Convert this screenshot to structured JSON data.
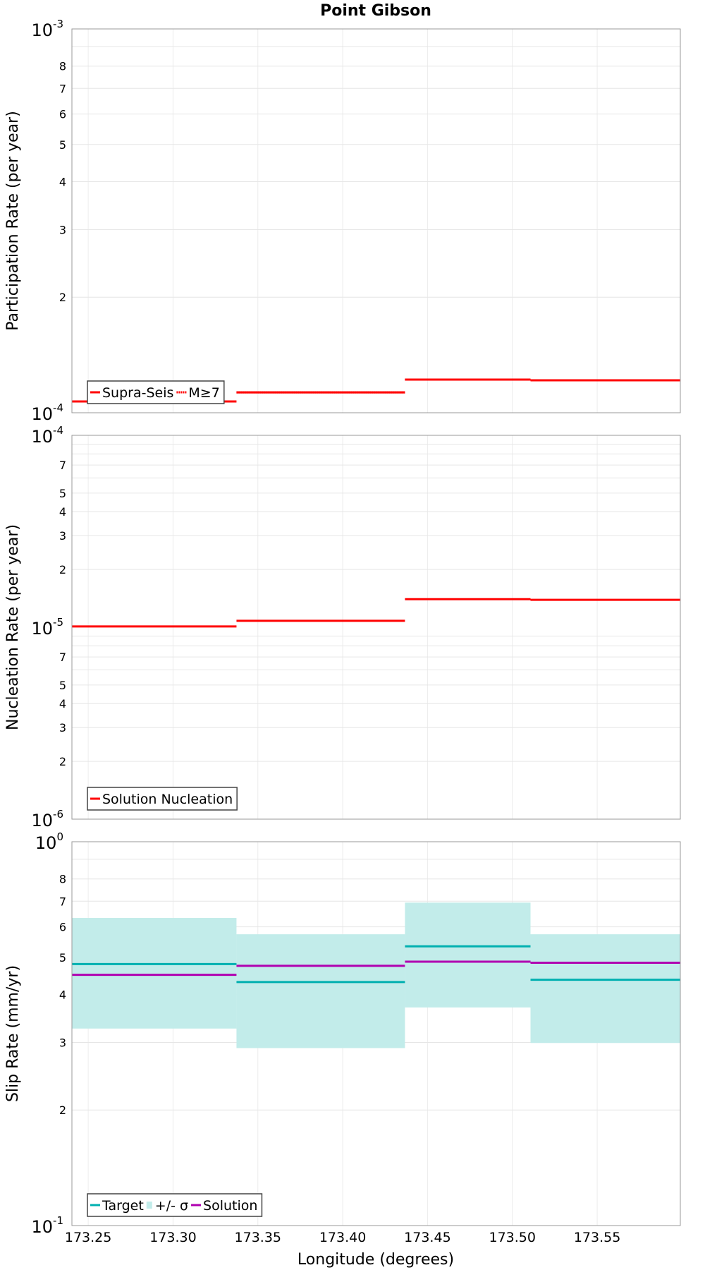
{
  "chart_data": {
    "title": "Point Gibson",
    "xlabel": "Longitude (degrees)",
    "xlim": [
      173.2404,
      173.599
    ],
    "xticks": [
      "173.25",
      "173.30",
      "173.35",
      "173.40",
      "173.45",
      "173.50",
      "173.55"
    ],
    "segments": [
      173.2404,
      173.3374,
      173.4367,
      173.5107,
      173.599
    ],
    "panels": [
      {
        "type": "line",
        "ylabel": "Participation Rate (per year)",
        "ylim": [
          0.0001,
          0.001
        ],
        "scale": "log",
        "major_labels": [
          {
            "base": "10",
            "exp": "-4"
          },
          {
            "base": "10",
            "exp": "-3"
          }
        ],
        "minor_labels": [
          "2",
          "3",
          "4",
          "5",
          "6",
          "7",
          "8"
        ],
        "series": [
          {
            "name": "Supra-Seis",
            "style": "solid",
            "color": "#ff0000",
            "values": [
              0.000107,
              0.000113,
              0.000122,
              0.0001215
            ]
          },
          {
            "name": "M≥7",
            "style": "dotted",
            "color": "#ff0000",
            "values": [
              0.000107,
              0.000113,
              0.000122,
              0.0001215
            ]
          }
        ]
      },
      {
        "type": "line",
        "ylabel": "Nucleation Rate (per year)",
        "ylim": [
          1e-06,
          0.0001
        ],
        "scale": "log",
        "major_labels": [
          {
            "base": "10",
            "exp": "-6"
          },
          {
            "base": "10",
            "exp": "-5"
          },
          {
            "base": "10",
            "exp": "-4"
          }
        ],
        "minor_labels": [
          "2",
          "3",
          "4",
          "5",
          "7"
        ],
        "series": [
          {
            "name": "Solution Nucleation",
            "style": "solid",
            "color": "#ff0000",
            "values": [
              1.01e-05,
              1.08e-05,
              1.4e-05,
              1.39e-05
            ]
          }
        ]
      },
      {
        "type": "line",
        "ylabel": "Slip Rate (mm/yr)",
        "ylim": [
          0.1,
          1
        ],
        "scale": "log",
        "major_labels": [
          {
            "base": "10",
            "exp": "-1"
          },
          {
            "base": "10",
            "exp": "0"
          }
        ],
        "minor_labels": [
          "2",
          "3",
          "4",
          "5",
          "6",
          "7",
          "8"
        ],
        "band": {
          "name": "+/- σ",
          "color": "#c2ecea",
          "upper": [
            0.633,
            0.574,
            0.694,
            0.574
          ],
          "lower": [
            0.326,
            0.29,
            0.37,
            0.299
          ]
        },
        "series": [
          {
            "name": "Target",
            "style": "solid",
            "color": "#00b0b0",
            "values": [
              0.48,
              0.431,
              0.534,
              0.437
            ]
          },
          {
            "name": "Solution",
            "style": "solid",
            "color": "#b000b0",
            "values": [
              0.45,
              0.475,
              0.487,
              0.484
            ]
          }
        ]
      }
    ]
  }
}
